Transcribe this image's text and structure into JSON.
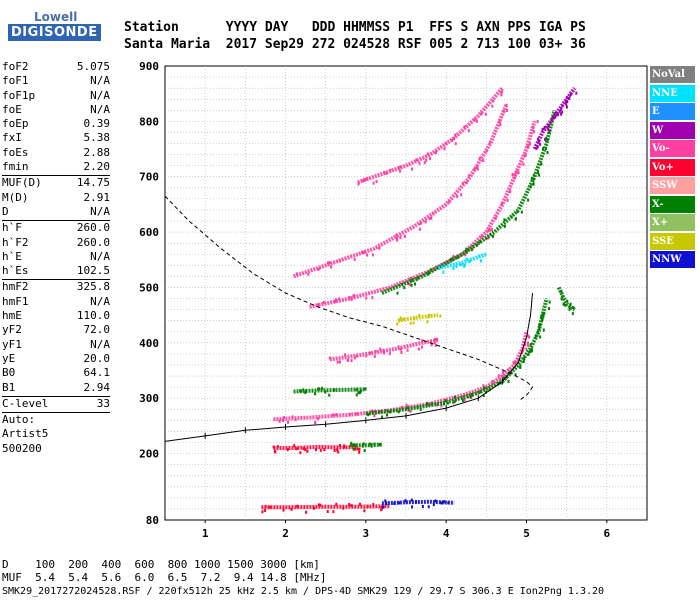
{
  "logo": {
    "top": "Lowell",
    "bottom": "DIGISONDE"
  },
  "header": {
    "line1": "Station      YYYY DAY   DDD HHMMSS P1  FFS S AXN PPS IGA PS",
    "line2": "Santa Maria  2017 Sep29 272 024528 RSF 005 2 713 100 03+ 36"
  },
  "params": [
    {
      "label": "foF2",
      "value": "5.075"
    },
    {
      "label": "foF1",
      "value": "N/A"
    },
    {
      "label": "foF1p",
      "value": "N/A"
    },
    {
      "label": "foE",
      "value": "N/A"
    },
    {
      "label": "foEp",
      "value": "0.39"
    },
    {
      "label": "fxI",
      "value": "5.38"
    },
    {
      "label": "foEs",
      "value": "2.88"
    },
    {
      "label": "fmin",
      "value": "2.20"
    },
    {
      "sep": true
    },
    {
      "label": "MUF(D)",
      "value": "14.75"
    },
    {
      "label": "M(D)",
      "value": "2.91"
    },
    {
      "label": "D",
      "value": "N/A"
    },
    {
      "sep": true
    },
    {
      "label": "h`F",
      "value": "260.0"
    },
    {
      "label": "h`F2",
      "value": "260.0"
    },
    {
      "label": "h`E",
      "value": "N/A"
    },
    {
      "label": "h`Es",
      "value": "102.5"
    },
    {
      "sep": true
    },
    {
      "label": "hmF2",
      "value": "325.8"
    },
    {
      "label": "hmF1",
      "value": "N/A"
    },
    {
      "label": "hmE",
      "value": "110.0"
    },
    {
      "label": "yF2",
      "value": "72.0"
    },
    {
      "label": "yF1",
      "value": "N/A"
    },
    {
      "label": "yE",
      "value": "20.0"
    },
    {
      "label": "B0",
      "value": "64.1"
    },
    {
      "label": "B1",
      "value": "2.94"
    },
    {
      "sep": true
    },
    {
      "label": "C-level",
      "value": "33"
    },
    {
      "sep": true
    },
    {
      "label": "Auto:",
      "value": ""
    },
    {
      "label": "Artist5",
      "value": ""
    },
    {
      "label": "500200",
      "value": ""
    }
  ],
  "legend": [
    {
      "label": "NoVal",
      "color": "#808080"
    },
    {
      "label": "NNE",
      "color": "#00e0ff"
    },
    {
      "label": "E",
      "color": "#1e90ff"
    },
    {
      "label": "W",
      "color": "#a000b0"
    },
    {
      "label": "Vo-",
      "color": "#ff40a0"
    },
    {
      "label": "Vo+",
      "color": "#ff0030"
    },
    {
      "label": "SSW",
      "color": "#ffa0a0"
    },
    {
      "label": "X-",
      "color": "#008000"
    },
    {
      "label": "X+",
      "color": "#90c060"
    },
    {
      "label": "SSE",
      "color": "#c8c800"
    },
    {
      "label": "NNW",
      "color": "#1010d0"
    }
  ],
  "footer": {
    "d_line": "D    100  200  400  600  800 1000 1500 3000 [km]",
    "muf_line": "MUF  5.4  5.4  5.6  6.0  6.5  7.2  9.4 14.8 [MHz]",
    "info_line": "SMK29_2017272024528.RSF / 220fx512h 25 kHz 2.5 km / DPS-4D SMK29 129 / 29.7 S 306.3 E Ion2Png 1.3.20"
  },
  "chart_data": {
    "type": "scatter",
    "xlim": [
      0.5,
      6.5
    ],
    "ylim": [
      80,
      900
    ],
    "xticks": [
      1,
      2,
      3,
      4,
      5,
      6
    ],
    "yticks": [
      80,
      200,
      300,
      400,
      500,
      600,
      700,
      800,
      900
    ],
    "grid": true,
    "traces": [
      {
        "name": "Vo- F2 trace",
        "legend": "Vo-",
        "x": [
          1.85,
          2.3,
          2.8,
          3.3,
          3.8,
          4.2,
          4.5,
          4.7,
          4.85,
          4.95,
          5.0
        ],
        "y": [
          262,
          265,
          270,
          278,
          290,
          305,
          320,
          340,
          360,
          390,
          420
        ]
      },
      {
        "name": "X- F2 trace",
        "legend": "X-",
        "x": [
          3.0,
          3.5,
          4.0,
          4.4,
          4.7,
          4.9,
          5.05,
          5.15,
          5.2,
          5.25
        ],
        "y": [
          272,
          280,
          292,
          310,
          330,
          360,
          390,
          420,
          450,
          480
        ]
      },
      {
        "name": "Vo- 2nd hop",
        "legend": "Vo-",
        "x": [
          2.3,
          2.8,
          3.3,
          3.8,
          4.2,
          4.5,
          4.7,
          4.85,
          5.0,
          5.1
        ],
        "y": [
          465,
          480,
          500,
          530,
          560,
          600,
          650,
          700,
          750,
          800
        ]
      },
      {
        "name": "X- 2nd hop",
        "legend": "X-",
        "x": [
          3.2,
          3.7,
          4.2,
          4.6,
          4.9,
          5.1,
          5.25,
          5.35
        ],
        "y": [
          490,
          520,
          560,
          600,
          640,
          700,
          760,
          820
        ]
      },
      {
        "name": "Vo- multi-hop upper",
        "legend": "Vo-",
        "x": [
          2.1,
          2.6,
          3.1,
          3.6,
          4.0,
          4.3,
          4.55,
          4.75
        ],
        "y": [
          520,
          545,
          570,
          610,
          650,
          700,
          760,
          830
        ]
      },
      {
        "name": "Vo- 3rd hop",
        "legend": "Vo-",
        "x": [
          2.9,
          3.2,
          3.5,
          3.8,
          4.1,
          4.4,
          4.7
        ],
        "y": [
          690,
          705,
          720,
          740,
          770,
          810,
          860
        ]
      },
      {
        "name": "Vo- Es 2nd band",
        "legend": "Vo-",
        "x": [
          2.55,
          2.8,
          3.1,
          3.4,
          3.7,
          3.9
        ],
        "y": [
          370,
          375,
          382,
          390,
          400,
          405
        ]
      },
      {
        "name": "X- Es 2nd band",
        "legend": "X-",
        "x": [
          2.1,
          2.4,
          2.7,
          3.0
        ],
        "y": [
          312,
          314,
          315,
          316
        ]
      },
      {
        "name": "Vo+ Es band",
        "legend": "Vo+",
        "x": [
          1.85,
          2.1,
          2.4,
          2.7,
          2.9
        ],
        "y": [
          210,
          210,
          212,
          211,
          212
        ]
      },
      {
        "name": "X- Es band",
        "legend": "X-",
        "x": [
          2.8,
          3.0,
          3.2
        ],
        "y": [
          215,
          215,
          216
        ]
      },
      {
        "name": "Vo+ E region",
        "legend": "Vo+",
        "x": [
          1.7,
          2.1,
          2.5,
          2.9,
          3.3
        ],
        "y": [
          103,
          103,
          104,
          104,
          105
        ]
      },
      {
        "name": "NNW E region",
        "legend": "NNW",
        "x": [
          3.2,
          3.5,
          3.8,
          4.1
        ],
        "y": [
          110,
          112,
          113,
          111
        ]
      },
      {
        "name": "W cusp",
        "legend": "W",
        "x": [
          5.1,
          5.2,
          5.3,
          5.4,
          5.5,
          5.6
        ],
        "y": [
          750,
          780,
          800,
          820,
          840,
          860
        ]
      },
      {
        "name": "X- W high",
        "legend": "X-",
        "x": [
          5.4,
          5.5,
          5.6
        ],
        "y": [
          500,
          470,
          460
        ]
      },
      {
        "name": "SSE 2nd band",
        "legend": "SSE",
        "x": [
          3.4,
          3.6,
          3.9
        ],
        "y": [
          440,
          445,
          450
        ]
      },
      {
        "name": "NNE 2nd hop",
        "legend": "NNE",
        "x": [
          3.9,
          4.2,
          4.5
        ],
        "y": [
          535,
          545,
          560
        ]
      }
    ],
    "profile": {
      "name": "Electron density profile (dashed)",
      "x": [
        0.5,
        0.8,
        1.2,
        1.6,
        2.0,
        2.4,
        2.8,
        3.2,
        3.6,
        4.0,
        4.4,
        4.8,
        5.0,
        5.075,
        5.0,
        4.9
      ],
      "y": [
        665,
        620,
        570,
        525,
        490,
        465,
        445,
        430,
        410,
        390,
        370,
        345,
        330,
        320,
        305,
        295
      ]
    },
    "virtual_height": {
      "name": "Virtual height trace (solid)",
      "x": [
        0.5,
        1.0,
        1.5,
        2.0,
        2.5,
        3.0,
        3.5,
        4.0,
        4.4,
        4.7,
        4.9,
        5.0,
        5.05,
        5.075
      ],
      "y": [
        222,
        232,
        242,
        248,
        253,
        260,
        268,
        282,
        300,
        330,
        365,
        410,
        450,
        490
      ]
    }
  }
}
